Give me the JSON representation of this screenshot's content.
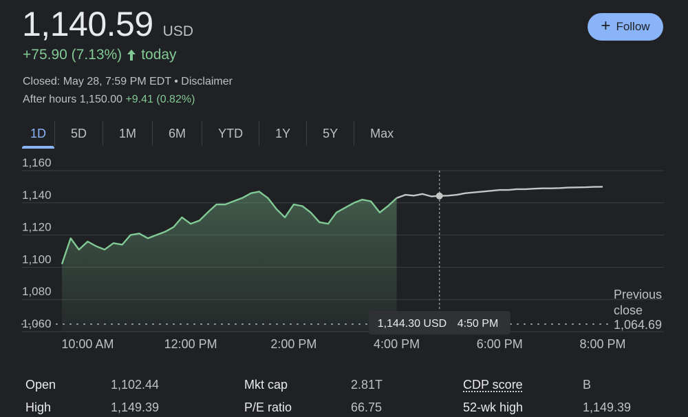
{
  "quote": {
    "price": "1,140.59",
    "currency": "USD",
    "change": "+75.90 (7.13%)",
    "period": "today",
    "closed": "Closed: May 28, 7:59 PM EDT",
    "disclaimer": "Disclaimer",
    "after_hours_label": "After hours 1,150.00",
    "after_hours_change": "+9.41 (0.82%)"
  },
  "follow_button": {
    "label": "Follow",
    "icon": "plus-icon"
  },
  "tabs": [
    {
      "label": "1D",
      "active": true
    },
    {
      "label": "5D"
    },
    {
      "label": "1M"
    },
    {
      "label": "6M"
    },
    {
      "label": "YTD"
    },
    {
      "label": "1Y"
    },
    {
      "label": "5Y"
    },
    {
      "label": "Max"
    }
  ],
  "colors": {
    "background": "#202124",
    "gain": "#81c995",
    "after_hours_line": "#c4c7c5",
    "grid": "#3c4043",
    "accent": "#8ab4f8"
  },
  "chart_data": {
    "type": "line",
    "ylim": [
      1060,
      1160
    ],
    "yticks": [
      1060,
      1080,
      1100,
      1120,
      1140,
      1160
    ],
    "ytick_labels": [
      "1,060",
      "1,080",
      "1,100",
      "1,120",
      "1,140",
      "1,160"
    ],
    "xlim": [
      9.5,
      20.0
    ],
    "xticks": [
      10,
      12,
      14,
      16,
      18,
      20
    ],
    "xtick_labels": [
      "10:00 AM",
      "12:00 PM",
      "2:00 PM",
      "4:00 PM",
      "6:00 PM",
      "8:00 PM"
    ],
    "previous_close": 1064.69,
    "previous_close_label": "Previous close",
    "previous_close_value": "1,064.69",
    "series": [
      {
        "session": "regular",
        "x": [
          9.5,
          9.67,
          9.83,
          10.0,
          10.17,
          10.33,
          10.5,
          10.67,
          10.83,
          11.0,
          11.17,
          11.33,
          11.5,
          11.67,
          11.83,
          12.0,
          12.17,
          12.33,
          12.5,
          12.67,
          12.83,
          13.0,
          13.17,
          13.33,
          13.5,
          13.67,
          13.83,
          14.0,
          14.17,
          14.33,
          14.5,
          14.67,
          14.83,
          15.0,
          15.17,
          15.33,
          15.5,
          15.67,
          15.83,
          16.0
        ],
        "y": [
          1102,
          1118,
          1111,
          1116,
          1113,
          1111,
          1115,
          1114,
          1120,
          1121,
          1118,
          1120,
          1122,
          1125,
          1131,
          1127,
          1129,
          1134,
          1139,
          1139,
          1141,
          1143,
          1146,
          1147,
          1143,
          1136,
          1131,
          1139,
          1138,
          1134,
          1128,
          1127,
          1134,
          1137,
          1140,
          1142,
          1141,
          1134,
          1138,
          1143
        ]
      },
      {
        "session": "after_hours",
        "x": [
          16.0,
          16.17,
          16.33,
          16.5,
          16.67,
          16.83,
          17.0,
          17.17,
          17.33,
          17.5,
          17.67,
          17.83,
          18.0,
          18.17,
          18.33,
          18.5,
          18.67,
          18.83,
          19.0,
          19.17,
          19.33,
          19.5,
          19.67,
          19.83,
          20.0
        ],
        "y": [
          1143,
          1145,
          1144.5,
          1145.5,
          1144,
          1144.3,
          1144.5,
          1145,
          1146,
          1146.5,
          1147,
          1147.5,
          1148,
          1148,
          1148.5,
          1148.5,
          1148.8,
          1149,
          1149,
          1149.2,
          1149.5,
          1149.6,
          1149.7,
          1149.9,
          1150
        ]
      }
    ],
    "tooltip": {
      "x": 16.83,
      "y": 1144.3,
      "value": "1,144.30 USD",
      "time": "4:50 PM"
    }
  },
  "stats": [
    {
      "label": "Open",
      "value": "1,102.44"
    },
    {
      "label": "Mkt cap",
      "value": "2.81T"
    },
    {
      "label": "CDP score",
      "value": "B"
    },
    {
      "label": "High",
      "value": "1,149.39"
    },
    {
      "label": "P/E ratio",
      "value": "66.75"
    },
    {
      "label": "52-wk high",
      "value": "1,149.39"
    }
  ]
}
